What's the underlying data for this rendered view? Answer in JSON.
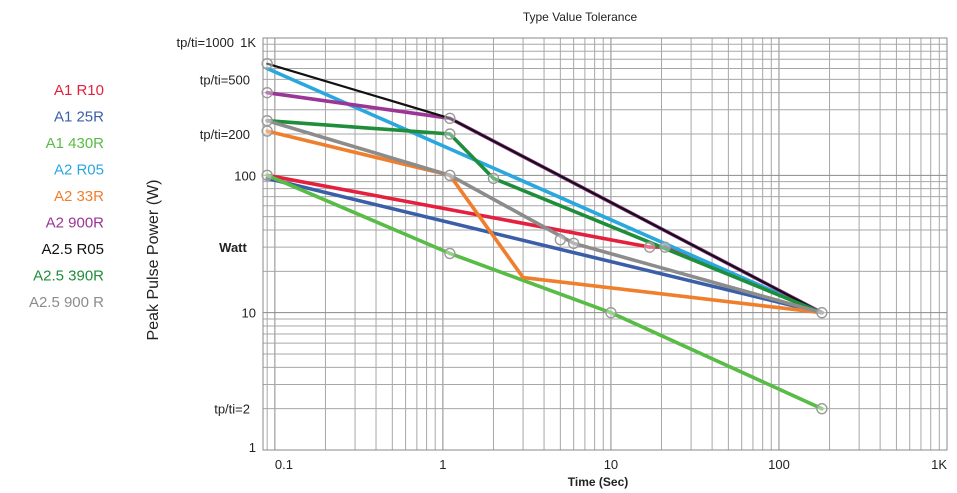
{
  "chart_data": {
    "type": "line",
    "title": "Type Value Tolerance",
    "xlabel": "Time (Sec)",
    "ylabel": "Peak Pulse Power (W)",
    "y_annotation": "Watt",
    "x_scale": "log",
    "y_scale": "log",
    "xlim": [
      0.085,
      1000
    ],
    "ylim": [
      1,
      1000
    ],
    "grid": true,
    "legend_position": "left",
    "x_ticks": [
      {
        "value": 0.1,
        "label": "0.1"
      },
      {
        "value": 1,
        "label": "1"
      },
      {
        "value": 10,
        "label": "10"
      },
      {
        "value": 100,
        "label": "100"
      },
      {
        "value": 1000,
        "label": "1K"
      }
    ],
    "y_ticks": [
      {
        "value": 1,
        "label": "1"
      },
      {
        "value": 10,
        "label": "10"
      },
      {
        "value": 100,
        "label": "100"
      },
      {
        "value": 1000,
        "label": "1K"
      }
    ],
    "y_annotations": [
      {
        "value": 1000,
        "label": "tp/ti=1000"
      },
      {
        "value": 500,
        "label": "tp/ti=500"
      },
      {
        "value": 200,
        "label": "tp/ti=200"
      },
      {
        "value": 2,
        "label": "tp/ti=2"
      }
    ],
    "series": [
      {
        "name": "A1 R10",
        "color": "#e5203f",
        "x": [
          0.09,
          17,
          21,
          180
        ],
        "y": [
          100,
          30,
          30,
          10
        ]
      },
      {
        "name": "A1 25R",
        "color": "#3a5fa8",
        "x": [
          0.09,
          180
        ],
        "y": [
          95,
          10
        ]
      },
      {
        "name": "A1 430R",
        "color": "#58bc46",
        "x": [
          0.09,
          1.1,
          10,
          180
        ],
        "y": [
          100,
          27,
          10,
          2
        ]
      },
      {
        "name": "A2 R05",
        "color": "#2aa7df",
        "x": [
          0.09,
          180
        ],
        "y": [
          600,
          10
        ]
      },
      {
        "name": "A2 33R",
        "color": "#f07f2d",
        "x": [
          0.09,
          1.1,
          3,
          180
        ],
        "y": [
          210,
          100,
          18,
          10
        ]
      },
      {
        "name": "A2 900R",
        "color": "#9b3596",
        "x": [
          0.09,
          1.1,
          180
        ],
        "y": [
          400,
          260,
          10
        ]
      },
      {
        "name": "A2.5 R05",
        "color": "#111111",
        "x": [
          0.09,
          1.1,
          180
        ],
        "y": [
          650,
          260,
          10
        ]
      },
      {
        "name": "A2.5 390R",
        "color": "#1f8e3b",
        "x": [
          0.09,
          1.1,
          2,
          180
        ],
        "y": [
          250,
          200,
          95,
          10
        ]
      },
      {
        "name": "A2.5 900 R",
        "color": "#8c8c8c",
        "x": [
          0.09,
          1.1,
          6,
          180
        ],
        "y": [
          250,
          100,
          32,
          10
        ]
      }
    ],
    "markers": [
      {
        "x": 0.09,
        "y": 650
      },
      {
        "x": 0.09,
        "y": 400
      },
      {
        "x": 0.09,
        "y": 250
      },
      {
        "x": 0.09,
        "y": 210
      },
      {
        "x": 0.09,
        "y": 100
      },
      {
        "x": 1.1,
        "y": 260
      },
      {
        "x": 1.1,
        "y": 200
      },
      {
        "x": 1.1,
        "y": 100
      },
      {
        "x": 1.1,
        "y": 27
      },
      {
        "x": 2,
        "y": 95
      },
      {
        "x": 5,
        "y": 34
      },
      {
        "x": 6,
        "y": 32
      },
      {
        "x": 10,
        "y": 10
      },
      {
        "x": 17,
        "y": 30
      },
      {
        "x": 21,
        "y": 30
      },
      {
        "x": 180,
        "y": 10
      },
      {
        "x": 180,
        "y": 2
      }
    ]
  }
}
